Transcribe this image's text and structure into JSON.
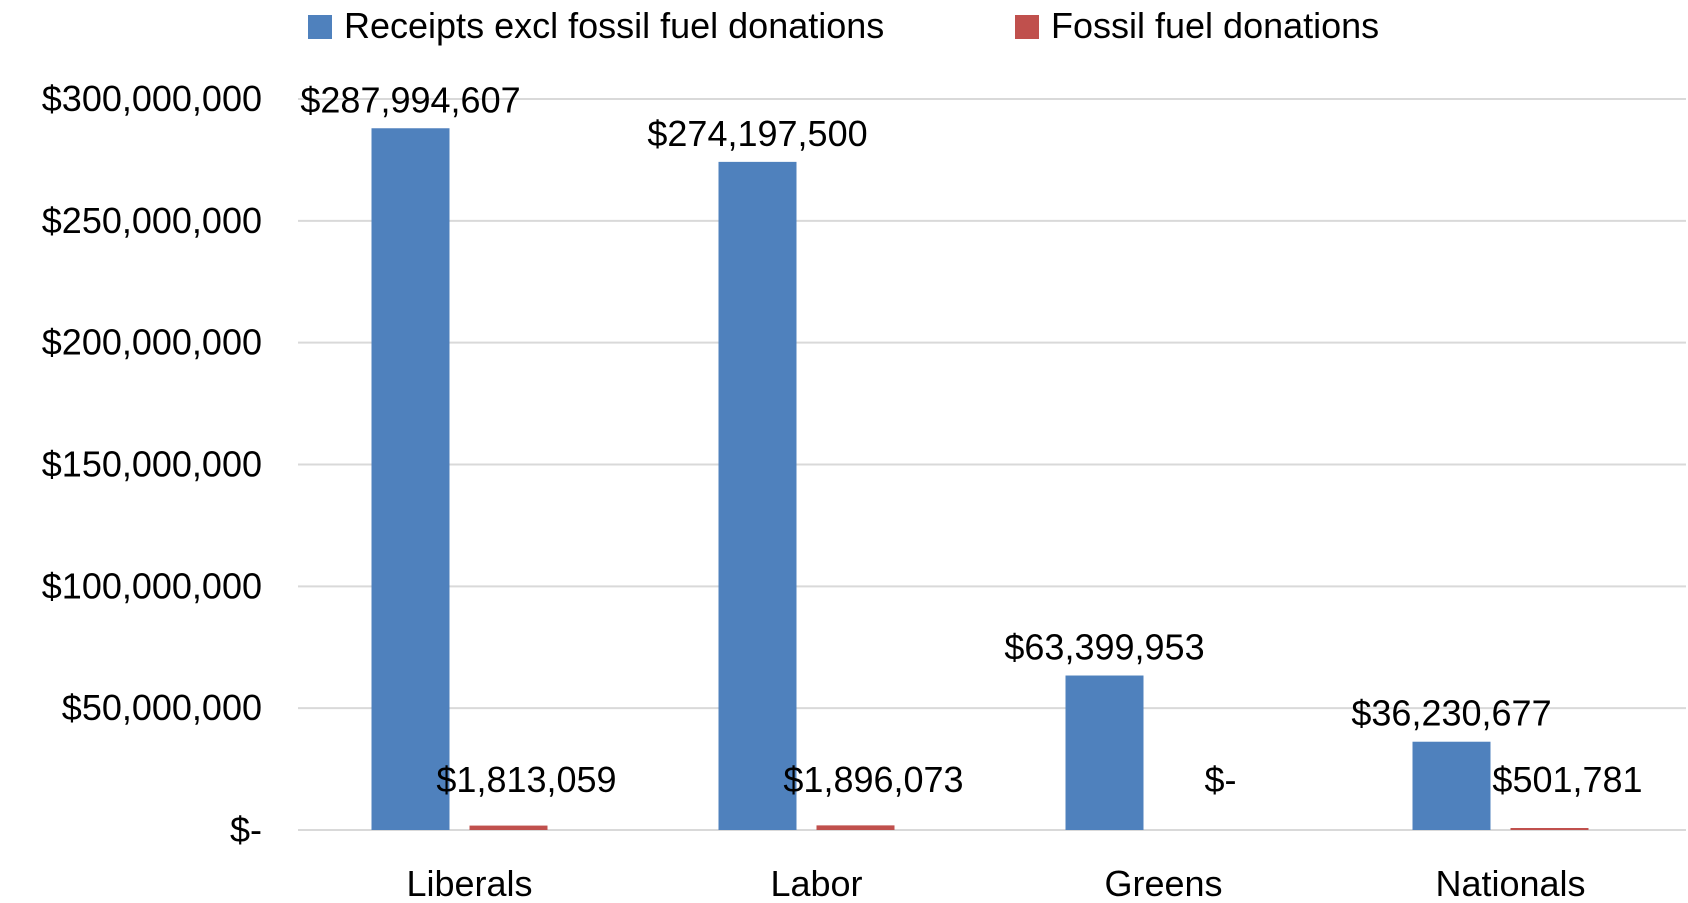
{
  "chart_data": {
    "type": "bar",
    "title": "",
    "xlabel": "",
    "ylabel": "",
    "categories": [
      "Liberals",
      "Labor",
      "Greens",
      "Nationals"
    ],
    "series": [
      {
        "name": "Receipts excl fossil fuel donations",
        "color": "#4f81bd",
        "values": [
          287994607,
          274197500,
          63399953,
          36230677
        ],
        "labels": [
          "$287,994,607",
          "$274,197,500",
          "$63,399,953",
          "$36,230,677"
        ]
      },
      {
        "name": "Fossil fuel donations",
        "color": "#c0504d",
        "values": [
          1813059,
          1896073,
          0,
          501781
        ],
        "labels": [
          "$1,813,059",
          "$1,896,073",
          "$-",
          "$501,781"
        ]
      }
    ],
    "ylim": [
      0,
      300000000
    ],
    "yticks": [
      0,
      50000000,
      100000000,
      150000000,
      200000000,
      250000000,
      300000000
    ],
    "ytick_labels": [
      "$-",
      "$50,000,000",
      "$100,000,000",
      "$150,000,000",
      "$200,000,000",
      "$250,000,000",
      "$300,000,000"
    ],
    "grid": true,
    "legend_position": "top"
  }
}
